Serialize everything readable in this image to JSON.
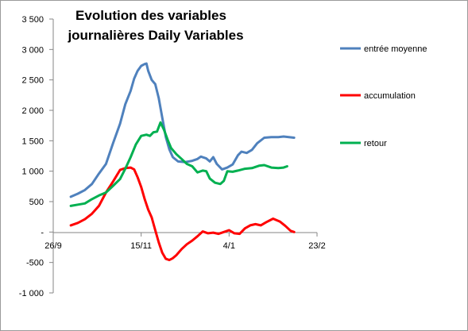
{
  "chart_data": {
    "type": "line",
    "title_lines": [
      "Evolution des variables",
      "journalières Daily Variables"
    ],
    "xlabel": "",
    "ylabel": "",
    "ylim": [
      -1000,
      3500
    ],
    "yticks": [
      3500,
      3000,
      2500,
      2000,
      1500,
      1000,
      500,
      0,
      -500,
      -1000
    ],
    "ytick_labels": [
      "3 500",
      "3 000",
      "2 500",
      "2 000",
      "1 500",
      "1 000",
      "500",
      "-",
      "-500",
      "-1 000"
    ],
    "xlim": [
      "2009-09-26",
      "2010-02-23"
    ],
    "xticks": [
      "2009-09-26",
      "2009-11-15",
      "2010-01-04",
      "2010-02-23"
    ],
    "xtick_labels": [
      "26/9",
      "15/11",
      "4/1",
      "23/2"
    ],
    "legend_position": "right",
    "grid": false,
    "series": [
      {
        "name": "entrée moyenne",
        "color": "#4f81bd",
        "points": [
          [
            "2009-10-06",
            580
          ],
          [
            "2009-10-10",
            630
          ],
          [
            "2009-10-14",
            690
          ],
          [
            "2009-10-18",
            790
          ],
          [
            "2009-10-22",
            960
          ],
          [
            "2009-10-26",
            1120
          ],
          [
            "2009-10-30",
            1460
          ],
          [
            "2009-11-03",
            1780
          ],
          [
            "2009-11-06",
            2100
          ],
          [
            "2009-11-09",
            2320
          ],
          [
            "2009-11-11",
            2520
          ],
          [
            "2009-11-13",
            2650
          ],
          [
            "2009-11-15",
            2730
          ],
          [
            "2009-11-17",
            2760
          ],
          [
            "2009-11-18",
            2770
          ],
          [
            "2009-11-19",
            2650
          ],
          [
            "2009-11-21",
            2500
          ],
          [
            "2009-11-23",
            2430
          ],
          [
            "2009-11-25",
            2200
          ],
          [
            "2009-11-27",
            1880
          ],
          [
            "2009-11-29",
            1560
          ],
          [
            "2009-12-01",
            1360
          ],
          [
            "2009-12-03",
            1230
          ],
          [
            "2009-12-06",
            1160
          ],
          [
            "2009-12-10",
            1150
          ],
          [
            "2009-12-14",
            1170
          ],
          [
            "2009-12-17",
            1200
          ],
          [
            "2009-12-19",
            1240
          ],
          [
            "2009-12-22",
            1210
          ],
          [
            "2009-12-24",
            1160
          ],
          [
            "2009-12-26",
            1230
          ],
          [
            "2009-12-28",
            1120
          ],
          [
            "2009-12-31",
            1030
          ],
          [
            "2010-01-03",
            1060
          ],
          [
            "2010-01-06",
            1110
          ],
          [
            "2010-01-09",
            1260
          ],
          [
            "2010-01-11",
            1320
          ],
          [
            "2010-01-14",
            1300
          ],
          [
            "2010-01-17",
            1350
          ],
          [
            "2010-01-20",
            1460
          ],
          [
            "2010-01-24",
            1550
          ],
          [
            "2010-01-28",
            1560
          ],
          [
            "2010-02-01",
            1560
          ],
          [
            "2010-02-04",
            1570
          ],
          [
            "2010-02-07",
            1560
          ],
          [
            "2010-02-10",
            1550
          ]
        ]
      },
      {
        "name": "accumulation",
        "color": "#ff0000",
        "points": [
          [
            "2009-10-06",
            110
          ],
          [
            "2009-10-10",
            150
          ],
          [
            "2009-10-14",
            210
          ],
          [
            "2009-10-18",
            300
          ],
          [
            "2009-10-22",
            430
          ],
          [
            "2009-10-26",
            650
          ],
          [
            "2009-10-30",
            830
          ],
          [
            "2009-11-03",
            1020
          ],
          [
            "2009-11-06",
            1050
          ],
          [
            "2009-11-09",
            1060
          ],
          [
            "2009-11-11",
            1030
          ],
          [
            "2009-11-13",
            900
          ],
          [
            "2009-11-15",
            740
          ],
          [
            "2009-11-17",
            540
          ],
          [
            "2009-11-19",
            370
          ],
          [
            "2009-11-21",
            240
          ],
          [
            "2009-11-23",
            30
          ],
          [
            "2009-11-25",
            -170
          ],
          [
            "2009-11-27",
            -340
          ],
          [
            "2009-11-29",
            -440
          ],
          [
            "2009-12-01",
            -460
          ],
          [
            "2009-12-03",
            -430
          ],
          [
            "2009-12-05",
            -380
          ],
          [
            "2009-12-08",
            -280
          ],
          [
            "2009-12-11",
            -200
          ],
          [
            "2009-12-14",
            -140
          ],
          [
            "2009-12-17",
            -70
          ],
          [
            "2009-12-20",
            10
          ],
          [
            "2009-12-23",
            -20
          ],
          [
            "2009-12-26",
            -10
          ],
          [
            "2009-12-29",
            -30
          ],
          [
            "2010-01-01",
            0
          ],
          [
            "2010-01-04",
            30
          ],
          [
            "2010-01-07",
            -20
          ],
          [
            "2010-01-10",
            -30
          ],
          [
            "2010-01-13",
            60
          ],
          [
            "2010-01-16",
            110
          ],
          [
            "2010-01-19",
            130
          ],
          [
            "2010-01-22",
            110
          ],
          [
            "2010-01-25",
            160
          ],
          [
            "2010-01-29",
            220
          ],
          [
            "2010-02-02",
            170
          ],
          [
            "2010-02-05",
            100
          ],
          [
            "2010-02-08",
            20
          ],
          [
            "2010-02-10",
            0
          ]
        ]
      },
      {
        "name": "retour",
        "color": "#00b050",
        "points": [
          [
            "2009-10-06",
            430
          ],
          [
            "2009-10-10",
            450
          ],
          [
            "2009-10-14",
            470
          ],
          [
            "2009-10-18",
            540
          ],
          [
            "2009-10-22",
            600
          ],
          [
            "2009-10-26",
            650
          ],
          [
            "2009-10-30",
            760
          ],
          [
            "2009-11-03",
            870
          ],
          [
            "2009-11-06",
            1040
          ],
          [
            "2009-11-09",
            1230
          ],
          [
            "2009-11-12",
            1440
          ],
          [
            "2009-11-15",
            1580
          ],
          [
            "2009-11-18",
            1600
          ],
          [
            "2009-11-20",
            1580
          ],
          [
            "2009-11-22",
            1640
          ],
          [
            "2009-11-24",
            1650
          ],
          [
            "2009-11-26",
            1800
          ],
          [
            "2009-11-28",
            1680
          ],
          [
            "2009-11-30",
            1520
          ],
          [
            "2009-12-02",
            1380
          ],
          [
            "2009-12-05",
            1280
          ],
          [
            "2009-12-08",
            1200
          ],
          [
            "2009-12-11",
            1120
          ],
          [
            "2009-12-14",
            1080
          ],
          [
            "2009-12-17",
            980
          ],
          [
            "2009-12-20",
            1010
          ],
          [
            "2009-12-22",
            1000
          ],
          [
            "2009-12-24",
            880
          ],
          [
            "2009-12-27",
            810
          ],
          [
            "2009-12-30",
            790
          ],
          [
            "2010-01-01",
            840
          ],
          [
            "2010-01-03",
            1000
          ],
          [
            "2010-01-06",
            990
          ],
          [
            "2010-01-09",
            1010
          ],
          [
            "2010-01-13",
            1040
          ],
          [
            "2010-01-17",
            1050
          ],
          [
            "2010-01-21",
            1090
          ],
          [
            "2010-01-24",
            1100
          ],
          [
            "2010-01-28",
            1060
          ],
          [
            "2010-02-01",
            1050
          ],
          [
            "2010-02-04",
            1060
          ],
          [
            "2010-02-06",
            1080
          ]
        ]
      }
    ]
  }
}
